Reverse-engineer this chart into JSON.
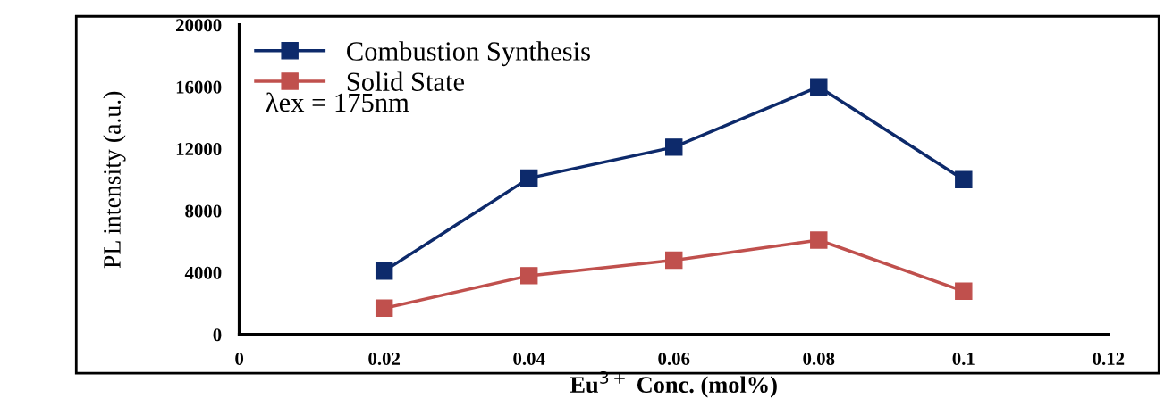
{
  "chart_data": {
    "type": "line",
    "xlabel": "Eu$^{3+}$ Conc. (mol%)",
    "ylabel": "PL intensity (a.u.)",
    "x": [
      0.02,
      0.04,
      0.06,
      0.08,
      0.1
    ],
    "series": [
      {
        "name": "Combustion Synthesis",
        "color": "#0d2a6b",
        "values": [
          4100,
          10100,
          12100,
          16000,
          10000
        ]
      },
      {
        "name": "Solid State",
        "color": "#c0504d",
        "values": [
          1700,
          3800,
          4800,
          6100,
          2800
        ]
      }
    ],
    "xlim": [
      0,
      0.12
    ],
    "xticks": [
      0,
      0.02,
      0.04,
      0.06,
      0.08,
      0.1,
      0.12
    ],
    "ylim": [
      0,
      20000
    ],
    "yticks": [
      0,
      4000,
      8000,
      12000,
      16000,
      20000
    ],
    "annotations": [
      "λex = 175nm"
    ],
    "legend": "top left",
    "marker": "square",
    "line_style": "solid",
    "grid": false
  }
}
